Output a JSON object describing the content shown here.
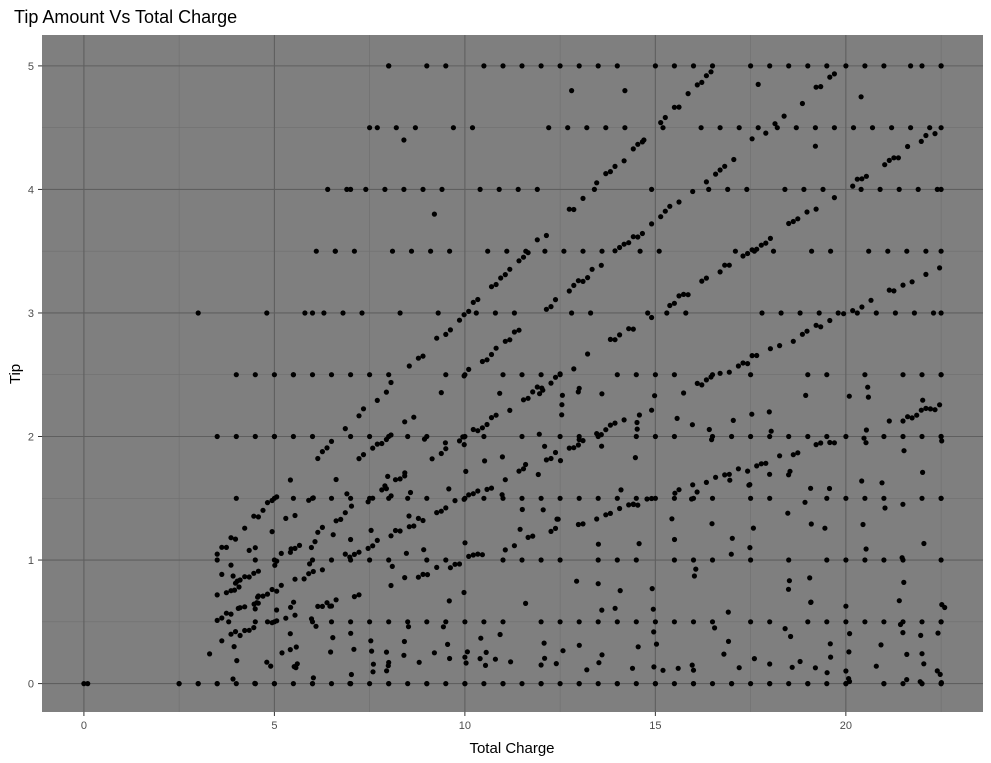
{
  "chart_data": {
    "type": "scatter",
    "title": "Tip Amount Vs Total Charge",
    "xlabel": "Total Charge",
    "ylabel": "Tip",
    "xlim": [
      -1.1,
      23.6
    ],
    "ylim": [
      -0.23,
      5.25
    ],
    "xticks": [
      0,
      5,
      10,
      15,
      20
    ],
    "yticks": [
      0,
      1,
      2,
      3,
      4,
      5
    ],
    "grid": true,
    "legend": "none",
    "colors": {
      "panel": "#7f7f7f",
      "point": "#000000",
      "grid": "#5f5f5f"
    },
    "points_summary": "Dense scatter of taxi-style fares (x 0–22.5) vs tips (y 0–5). Tips cluster on horizontal bands at 0, 0.5, 1, 1.5, 2, 2.5, 3, 3.5, 4, 4.5 and 5, plus diagonal streaks where tip is a fixed percentage of the fare (about 10%, 15%, 20%, 25% and 30%). Near x=0 there are a few points at tip 0, and one isolated point near (3, 3).",
    "series": [
      {
        "name": "",
        "points": [
          [
            0.0,
            0
          ],
          [
            0.1,
            0
          ],
          [
            2.5,
            0
          ],
          [
            3.0,
            0
          ],
          [
            3.5,
            0
          ],
          [
            4.0,
            0
          ],
          [
            4.5,
            0
          ],
          [
            5.0,
            0
          ],
          [
            6.0,
            0
          ],
          [
            7.0,
            0
          ],
          [
            8.0,
            0
          ],
          [
            9.0,
            0
          ],
          [
            10.0,
            0
          ],
          [
            11.0,
            0
          ],
          [
            12.0,
            0
          ],
          [
            13.0,
            0
          ],
          [
            14.0,
            0
          ],
          [
            15.0,
            0
          ],
          [
            16.0,
            0
          ],
          [
            17.0,
            0
          ],
          [
            18.0,
            0
          ],
          [
            19.0,
            0
          ],
          [
            20.0,
            0
          ],
          [
            21.0,
            0
          ],
          [
            22.0,
            0
          ],
          [
            22.5,
            0
          ],
          [
            3.0,
            3.0
          ],
          [
            3.3,
            0.24
          ],
          [
            3.8,
            0.5
          ],
          [
            4.5,
            1.1
          ],
          [
            5.0,
            2.0
          ],
          [
            5.5,
            2.5
          ],
          [
            6.0,
            3.0
          ],
          [
            6.6,
            3.5
          ],
          [
            7.0,
            4.0
          ],
          [
            7.5,
            4.5
          ],
          [
            8.0,
            5.0
          ],
          [
            8.4,
            4.4
          ],
          [
            9.2,
            3.8
          ],
          [
            12.8,
            4.8
          ],
          [
            14.2,
            4.8
          ],
          [
            14.7,
            4.4
          ],
          [
            17.7,
            4.85
          ],
          [
            19.2,
            4.35
          ],
          [
            20.4,
            4.75
          ],
          [
            21.7,
            5.0
          ],
          [
            22.5,
            5.0
          ],
          [
            22.5,
            4.5
          ],
          [
            22.5,
            4.0
          ],
          [
            22.5,
            3.5
          ],
          [
            22.5,
            3.0
          ],
          [
            22.5,
            2.5
          ],
          [
            22.5,
            2.0
          ],
          [
            22.5,
            1.5
          ],
          [
            22.5,
            1.0
          ],
          [
            22.5,
            0.5
          ]
        ]
      }
    ]
  }
}
